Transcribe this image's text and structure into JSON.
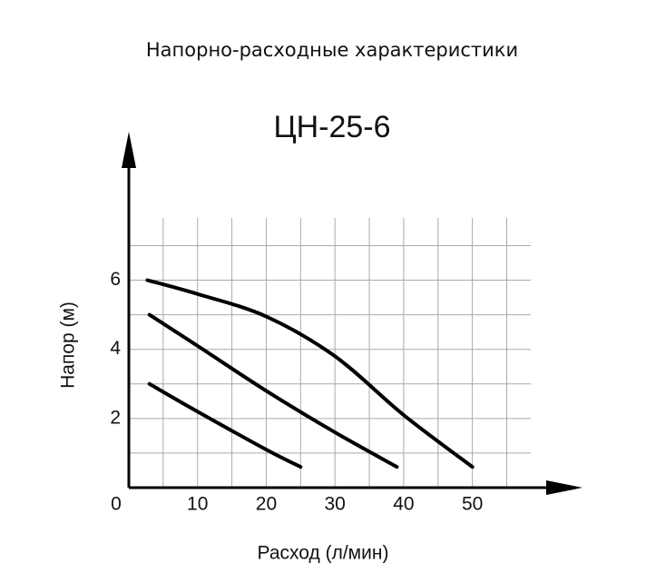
{
  "chart_data": {
    "type": "line",
    "title": "Напорно-расходные характеристики",
    "subtitle": "ЦН-25-6",
    "x_label": "Расход (л/мин)",
    "y_label": "Напор (м)",
    "xlim": [
      0,
      58.5
    ],
    "ylim": [
      0,
      7.8
    ],
    "xticks": [
      0,
      10,
      20,
      30,
      40,
      50
    ],
    "yticks": [
      2,
      4,
      6
    ],
    "xminorticks": [
      5,
      15,
      25,
      35,
      45,
      55
    ],
    "yminorticks": [
      1,
      3,
      5,
      7
    ],
    "grid": true,
    "series": [
      {
        "color": "#000000",
        "x": [
          2.7,
          10,
          20,
          30,
          40,
          50
        ],
        "values": [
          6.0,
          5.6,
          4.95,
          3.8,
          2.1,
          0.6
        ]
      },
      {
        "color": "#000000",
        "x": [
          3,
          10,
          20,
          30,
          39
        ],
        "values": [
          5.0,
          4.1,
          2.8,
          1.6,
          0.6
        ]
      },
      {
        "color": "#000000",
        "x": [
          3,
          10,
          20,
          25
        ],
        "values": [
          3.0,
          2.2,
          1.1,
          0.6
        ]
      }
    ]
  }
}
